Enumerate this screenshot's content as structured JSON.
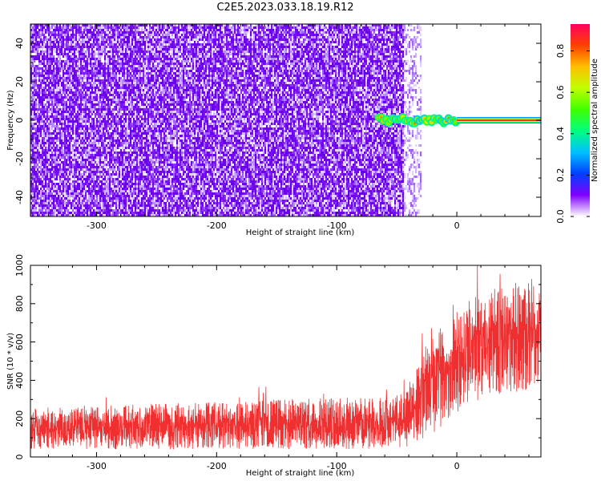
{
  "page": {
    "title": "C2E5.2023.033.18.19.R12"
  },
  "chart_data": [
    {
      "type": "heatmap",
      "xlabel": "Height of straight line (km)",
      "ylabel": "Frequency (Hz)",
      "xlim": [
        -355,
        70
      ],
      "ylim": [
        -50,
        50
      ],
      "xticks": [
        -300,
        -200,
        -100,
        0
      ],
      "yticks": [
        -40,
        -20,
        0,
        20,
        40
      ],
      "noise_region_x": [
        -355,
        -45
      ],
      "fringe_region_x": [
        -45,
        -30
      ],
      "signal_line_frequency": 0,
      "signal_start_x": -65,
      "colorbar": {
        "label": "Normalized spectral amplitude",
        "range": [
          0.0,
          0.93
        ],
        "ticks": [
          0.0,
          0.2,
          0.4,
          0.6,
          0.8
        ],
        "tick_labels": [
          "0.0",
          "0.2",
          "0.4",
          "0.6",
          "0.8"
        ],
        "colormap": [
          "#ffffff",
          "#7f00ff",
          "#0040ff",
          "#00c0ff",
          "#00ff80",
          "#40ff00",
          "#c0ff00",
          "#ffc000",
          "#ff4000",
          "#ff0060"
        ]
      }
    },
    {
      "type": "line",
      "xlabel": "Height of straight line (km)",
      "ylabel": "SNR (10 * v/v)",
      "xlim": [
        -355,
        70
      ],
      "ylim": [
        0,
        1000
      ],
      "xticks": [
        -300,
        -200,
        -100,
        0
      ],
      "yticks": [
        0,
        200,
        400,
        600,
        800,
        1000
      ],
      "color": "#f03030",
      "envelope": {
        "x": [
          -355,
          -300,
          -250,
          -200,
          -150,
          -100,
          -60,
          -45,
          -35,
          -25,
          -10,
          0,
          10,
          20,
          30,
          40,
          50,
          60,
          70
        ],
        "low": [
          40,
          40,
          40,
          40,
          40,
          40,
          40,
          40,
          60,
          100,
          160,
          230,
          270,
          300,
          320,
          330,
          340,
          350,
          360
        ],
        "high": [
          260,
          270,
          280,
          285,
          300,
          310,
          310,
          340,
          430,
          600,
          700,
          760,
          820,
          860,
          880,
          900,
          930,
          910,
          880
        ]
      }
    }
  ]
}
